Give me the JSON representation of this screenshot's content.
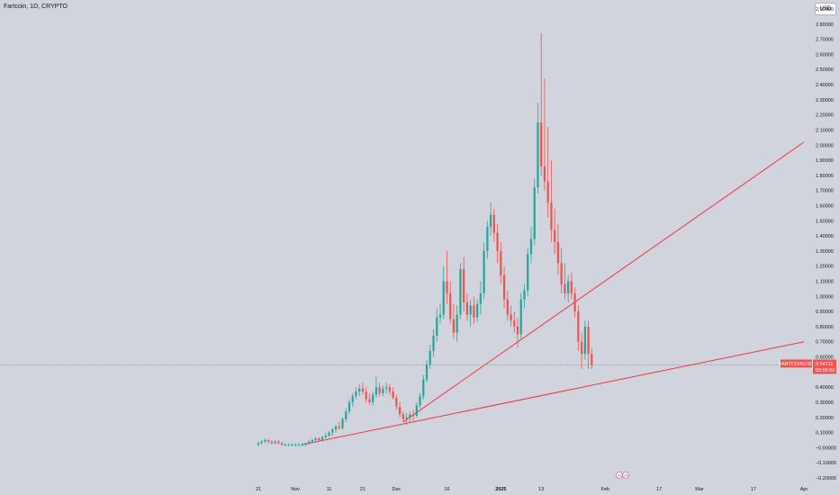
{
  "header": {
    "title": "Fartcoin, 1D, CRYPTO",
    "currency_button": "USD"
  },
  "colors": {
    "background": "#d1d4dc",
    "up": "#26a69a",
    "down": "#ef5350",
    "trendline": "#f23645",
    "price_line": "#f23645"
  },
  "price_badge": {
    "symbol": "FARTCOINUSD",
    "price": "0.54711",
    "countdown": "03:55:50"
  },
  "event_badges": [
    "US",
    "US"
  ],
  "chart_data": {
    "type": "candlestick",
    "y_axis": {
      "range": [
        -0.2,
        2.9
      ],
      "position": "right",
      "ticks": [
        "2.90000",
        "2.80000",
        "2.70000",
        "2.60000",
        "2.50000",
        "2.40000",
        "2.30000",
        "2.20000",
        "2.10000",
        "2.00000",
        "1.90000",
        "1.80000",
        "1.70000",
        "1.60000",
        "1.50000",
        "1.40000",
        "1.30000",
        "1.20000",
        "1.10000",
        "1.00000",
        "0.90000",
        "0.80000",
        "0.70000",
        "0.60000",
        "0.40000",
        "0.30000",
        "0.20000",
        "0.10000",
        "−0.00000",
        "−0.10000",
        "−0.20000"
      ]
    },
    "x_axis": {
      "ticks": [
        {
          "label": "21",
          "date": "2024-10-21"
        },
        {
          "label": "Nov",
          "date": "2024-11-01"
        },
        {
          "label": "11",
          "date": "2024-11-11"
        },
        {
          "label": "21",
          "date": "2024-11-21"
        },
        {
          "label": "Dec",
          "date": "2024-12-01"
        },
        {
          "label": "16",
          "date": "2024-12-16"
        },
        {
          "label": "2025",
          "date": "2025-01-01",
          "bold": true
        },
        {
          "label": "13",
          "date": "2025-01-13"
        },
        {
          "label": "Feb",
          "date": "2025-02-01"
        },
        {
          "label": "17",
          "date": "2025-02-17"
        },
        {
          "label": "Mar",
          "date": "2025-03-01"
        },
        {
          "label": "17",
          "date": "2025-03-17"
        },
        {
          "label": "Apr",
          "date": "2025-04-01"
        }
      ]
    },
    "candles": [
      {
        "date": "2024-10-21",
        "open": 0.02,
        "high": 0.04,
        "low": 0.01,
        "close": 0.03
      },
      {
        "date": "2024-10-22",
        "open": 0.03,
        "high": 0.05,
        "low": 0.02,
        "close": 0.04
      },
      {
        "date": "2024-10-23",
        "open": 0.04,
        "high": 0.06,
        "low": 0.03,
        "close": 0.05
      },
      {
        "date": "2024-10-24",
        "open": 0.05,
        "high": 0.06,
        "low": 0.03,
        "close": 0.04
      },
      {
        "date": "2024-10-25",
        "open": 0.04,
        "high": 0.05,
        "low": 0.02,
        "close": 0.03
      },
      {
        "date": "2024-10-26",
        "open": 0.03,
        "high": 0.05,
        "low": 0.02,
        "close": 0.04
      },
      {
        "date": "2024-10-27",
        "open": 0.04,
        "high": 0.05,
        "low": 0.02,
        "close": 0.03
      },
      {
        "date": "2024-10-28",
        "open": 0.03,
        "high": 0.04,
        "low": 0.01,
        "close": 0.02
      },
      {
        "date": "2024-10-29",
        "open": 0.02,
        "high": 0.03,
        "low": 0.01,
        "close": 0.02
      },
      {
        "date": "2024-10-30",
        "open": 0.02,
        "high": 0.03,
        "low": 0.01,
        "close": 0.02
      },
      {
        "date": "2024-10-31",
        "open": 0.02,
        "high": 0.03,
        "low": 0.01,
        "close": 0.02
      },
      {
        "date": "2024-11-01",
        "open": 0.02,
        "high": 0.03,
        "low": 0.01,
        "close": 0.02
      },
      {
        "date": "2024-11-02",
        "open": 0.02,
        "high": 0.03,
        "low": 0.01,
        "close": 0.02
      },
      {
        "date": "2024-11-03",
        "open": 0.02,
        "high": 0.03,
        "low": 0.01,
        "close": 0.02
      },
      {
        "date": "2024-11-04",
        "open": 0.02,
        "high": 0.03,
        "low": 0.01,
        "close": 0.03
      },
      {
        "date": "2024-11-05",
        "open": 0.03,
        "high": 0.05,
        "low": 0.02,
        "close": 0.04
      },
      {
        "date": "2024-11-06",
        "open": 0.04,
        "high": 0.06,
        "low": 0.03,
        "close": 0.05
      },
      {
        "date": "2024-11-07",
        "open": 0.05,
        "high": 0.07,
        "low": 0.04,
        "close": 0.06
      },
      {
        "date": "2024-11-08",
        "open": 0.06,
        "high": 0.07,
        "low": 0.04,
        "close": 0.05
      },
      {
        "date": "2024-11-09",
        "open": 0.05,
        "high": 0.08,
        "low": 0.04,
        "close": 0.07
      },
      {
        "date": "2024-11-10",
        "open": 0.07,
        "high": 0.1,
        "low": 0.06,
        "close": 0.08
      },
      {
        "date": "2024-11-11",
        "open": 0.08,
        "high": 0.11,
        "low": 0.07,
        "close": 0.1
      },
      {
        "date": "2024-11-12",
        "open": 0.1,
        "high": 0.13,
        "low": 0.08,
        "close": 0.12
      },
      {
        "date": "2024-11-13",
        "open": 0.12,
        "high": 0.15,
        "low": 0.1,
        "close": 0.14
      },
      {
        "date": "2024-11-14",
        "open": 0.14,
        "high": 0.17,
        "low": 0.12,
        "close": 0.13
      },
      {
        "date": "2024-11-15",
        "open": 0.13,
        "high": 0.2,
        "low": 0.12,
        "close": 0.19
      },
      {
        "date": "2024-11-16",
        "open": 0.19,
        "high": 0.26,
        "low": 0.17,
        "close": 0.24
      },
      {
        "date": "2024-11-17",
        "open": 0.24,
        "high": 0.32,
        "low": 0.22,
        "close": 0.3
      },
      {
        "date": "2024-11-18",
        "open": 0.3,
        "high": 0.36,
        "low": 0.27,
        "close": 0.34
      },
      {
        "date": "2024-11-19",
        "open": 0.34,
        "high": 0.4,
        "low": 0.32,
        "close": 0.37
      },
      {
        "date": "2024-11-20",
        "open": 0.37,
        "high": 0.42,
        "low": 0.34,
        "close": 0.39
      },
      {
        "date": "2024-11-21",
        "open": 0.39,
        "high": 0.43,
        "low": 0.35,
        "close": 0.37
      },
      {
        "date": "2024-11-22",
        "open": 0.37,
        "high": 0.4,
        "low": 0.3,
        "close": 0.32
      },
      {
        "date": "2024-11-23",
        "open": 0.32,
        "high": 0.36,
        "low": 0.28,
        "close": 0.3
      },
      {
        "date": "2024-11-24",
        "open": 0.3,
        "high": 0.37,
        "low": 0.28,
        "close": 0.35
      },
      {
        "date": "2024-11-25",
        "open": 0.35,
        "high": 0.47,
        "low": 0.33,
        "close": 0.4
      },
      {
        "date": "2024-11-26",
        "open": 0.4,
        "high": 0.43,
        "low": 0.34,
        "close": 0.36
      },
      {
        "date": "2024-11-27",
        "open": 0.36,
        "high": 0.41,
        "low": 0.34,
        "close": 0.39
      },
      {
        "date": "2024-11-28",
        "open": 0.39,
        "high": 0.43,
        "low": 0.36,
        "close": 0.4
      },
      {
        "date": "2024-11-29",
        "open": 0.4,
        "high": 0.42,
        "low": 0.35,
        "close": 0.37
      },
      {
        "date": "2024-11-30",
        "open": 0.37,
        "high": 0.4,
        "low": 0.32,
        "close": 0.33
      },
      {
        "date": "2024-12-01",
        "open": 0.33,
        "high": 0.35,
        "low": 0.25,
        "close": 0.27
      },
      {
        "date": "2024-12-02",
        "open": 0.27,
        "high": 0.3,
        "low": 0.2,
        "close": 0.22
      },
      {
        "date": "2024-12-03",
        "open": 0.22,
        "high": 0.24,
        "low": 0.17,
        "close": 0.19
      },
      {
        "date": "2024-12-04",
        "open": 0.19,
        "high": 0.23,
        "low": 0.15,
        "close": 0.2
      },
      {
        "date": "2024-12-05",
        "open": 0.2,
        "high": 0.24,
        "low": 0.17,
        "close": 0.22
      },
      {
        "date": "2024-12-06",
        "open": 0.22,
        "high": 0.25,
        "low": 0.18,
        "close": 0.21
      },
      {
        "date": "2024-12-07",
        "open": 0.21,
        "high": 0.3,
        "low": 0.2,
        "close": 0.28
      },
      {
        "date": "2024-12-08",
        "open": 0.28,
        "high": 0.36,
        "low": 0.26,
        "close": 0.34
      },
      {
        "date": "2024-12-09",
        "open": 0.34,
        "high": 0.48,
        "low": 0.32,
        "close": 0.45
      },
      {
        "date": "2024-12-10",
        "open": 0.45,
        "high": 0.58,
        "low": 0.43,
        "close": 0.55
      },
      {
        "date": "2024-12-11",
        "open": 0.55,
        "high": 0.68,
        "low": 0.52,
        "close": 0.64
      },
      {
        "date": "2024-12-12",
        "open": 0.64,
        "high": 0.78,
        "low": 0.6,
        "close": 0.74
      },
      {
        "date": "2024-12-13",
        "open": 0.74,
        "high": 0.92,
        "low": 0.7,
        "close": 0.86
      },
      {
        "date": "2024-12-14",
        "open": 0.86,
        "high": 0.95,
        "low": 0.82,
        "close": 0.88
      },
      {
        "date": "2024-12-15",
        "open": 0.88,
        "high": 1.2,
        "low": 0.85,
        "close": 1.1
      },
      {
        "date": "2024-12-16",
        "open": 1.1,
        "high": 1.3,
        "low": 0.95,
        "close": 1.02
      },
      {
        "date": "2024-12-17",
        "open": 1.02,
        "high": 1.1,
        "low": 0.82,
        "close": 0.85
      },
      {
        "date": "2024-12-18",
        "open": 0.85,
        "high": 0.95,
        "low": 0.72,
        "close": 0.76
      },
      {
        "date": "2024-12-19",
        "open": 0.76,
        "high": 0.94,
        "low": 0.7,
        "close": 0.88
      },
      {
        "date": "2024-12-20",
        "open": 0.88,
        "high": 1.22,
        "low": 0.85,
        "close": 1.18
      },
      {
        "date": "2024-12-21",
        "open": 1.18,
        "high": 1.26,
        "low": 0.9,
        "close": 0.96
      },
      {
        "date": "2024-12-22",
        "open": 0.96,
        "high": 1.02,
        "low": 0.84,
        "close": 0.88
      },
      {
        "date": "2024-12-23",
        "open": 0.88,
        "high": 0.98,
        "low": 0.8,
        "close": 0.94
      },
      {
        "date": "2024-12-24",
        "open": 0.94,
        "high": 1.0,
        "low": 0.82,
        "close": 0.86
      },
      {
        "date": "2024-12-25",
        "open": 0.86,
        "high": 0.98,
        "low": 0.83,
        "close": 0.95
      },
      {
        "date": "2024-12-26",
        "open": 0.95,
        "high": 1.1,
        "low": 0.88,
        "close": 1.02
      },
      {
        "date": "2024-12-27",
        "open": 1.02,
        "high": 1.36,
        "low": 0.98,
        "close": 1.3
      },
      {
        "date": "2024-12-28",
        "open": 1.3,
        "high": 1.5,
        "low": 1.25,
        "close": 1.46
      },
      {
        "date": "2024-12-29",
        "open": 1.46,
        "high": 1.62,
        "low": 1.4,
        "close": 1.54
      },
      {
        "date": "2024-12-30",
        "open": 1.54,
        "high": 1.58,
        "low": 1.36,
        "close": 1.42
      },
      {
        "date": "2024-12-31",
        "open": 1.42,
        "high": 1.48,
        "low": 1.22,
        "close": 1.3
      },
      {
        "date": "2025-01-01",
        "open": 1.3,
        "high": 1.36,
        "low": 1.08,
        "close": 1.14
      },
      {
        "date": "2025-01-02",
        "open": 1.14,
        "high": 1.2,
        "low": 0.92,
        "close": 0.98
      },
      {
        "date": "2025-01-03",
        "open": 0.98,
        "high": 1.04,
        "low": 0.84,
        "close": 0.88
      },
      {
        "date": "2025-01-04",
        "open": 0.88,
        "high": 0.94,
        "low": 0.8,
        "close": 0.84
      },
      {
        "date": "2025-01-05",
        "open": 0.84,
        "high": 0.9,
        "low": 0.76,
        "close": 0.8
      },
      {
        "date": "2025-01-06",
        "open": 0.8,
        "high": 0.86,
        "low": 0.66,
        "close": 0.75
      },
      {
        "date": "2025-01-07",
        "open": 0.75,
        "high": 1.02,
        "low": 0.72,
        "close": 0.98
      },
      {
        "date": "2025-01-08",
        "open": 0.98,
        "high": 1.08,
        "low": 0.92,
        "close": 1.04
      },
      {
        "date": "2025-01-09",
        "open": 1.04,
        "high": 1.32,
        "low": 1.0,
        "close": 1.28
      },
      {
        "date": "2025-01-10",
        "open": 1.28,
        "high": 1.46,
        "low": 1.22,
        "close": 1.38
      },
      {
        "date": "2025-01-11",
        "open": 1.38,
        "high": 1.78,
        "low": 1.34,
        "close": 1.72
      },
      {
        "date": "2025-01-12",
        "open": 1.72,
        "high": 2.28,
        "low": 1.68,
        "close": 2.15
      },
      {
        "date": "2025-01-13",
        "open": 2.15,
        "high": 2.74,
        "low": 1.8,
        "close": 1.86
      },
      {
        "date": "2025-01-14",
        "open": 1.86,
        "high": 2.44,
        "low": 1.7,
        "close": 1.76
      },
      {
        "date": "2025-01-15",
        "open": 1.76,
        "high": 2.12,
        "low": 1.52,
        "close": 1.62
      },
      {
        "date": "2025-01-16",
        "open": 1.62,
        "high": 1.9,
        "low": 1.36,
        "close": 1.44
      },
      {
        "date": "2025-01-17",
        "open": 1.44,
        "high": 1.58,
        "low": 1.28,
        "close": 1.36
      },
      {
        "date": "2025-01-18",
        "open": 1.36,
        "high": 1.48,
        "low": 1.14,
        "close": 1.22
      },
      {
        "date": "2025-01-19",
        "open": 1.22,
        "high": 1.32,
        "low": 1.02,
        "close": 1.08
      },
      {
        "date": "2025-01-20",
        "open": 1.08,
        "high": 1.22,
        "low": 0.98,
        "close": 1.02
      },
      {
        "date": "2025-01-21",
        "open": 1.02,
        "high": 1.14,
        "low": 0.96,
        "close": 1.1
      },
      {
        "date": "2025-01-22",
        "open": 1.1,
        "high": 1.16,
        "low": 0.98,
        "close": 1.02
      },
      {
        "date": "2025-01-23",
        "open": 1.02,
        "high": 1.06,
        "low": 0.86,
        "close": 0.9
      },
      {
        "date": "2025-01-24",
        "open": 0.9,
        "high": 0.94,
        "low": 0.64,
        "close": 0.7
      },
      {
        "date": "2025-01-25",
        "open": 0.7,
        "high": 0.76,
        "low": 0.52,
        "close": 0.62
      },
      {
        "date": "2025-01-26",
        "open": 0.62,
        "high": 0.84,
        "low": 0.58,
        "close": 0.8
      },
      {
        "date": "2025-01-27",
        "open": 0.8,
        "high": 0.84,
        "low": 0.52,
        "close": 0.62
      },
      {
        "date": "2025-01-28",
        "open": 0.62,
        "high": 0.66,
        "low": 0.52,
        "close": 0.547
      }
    ],
    "trendlines": [
      {
        "from": {
          "date": "2024-11-03",
          "price": 0.02
        },
        "to": {
          "date": "2025-04-01",
          "price": 0.7
        }
      },
      {
        "from": {
          "date": "2024-12-03",
          "price": 0.17
        },
        "to": {
          "date": "2025-04-01",
          "price": 2.02
        }
      }
    ],
    "last_price": 0.547
  }
}
